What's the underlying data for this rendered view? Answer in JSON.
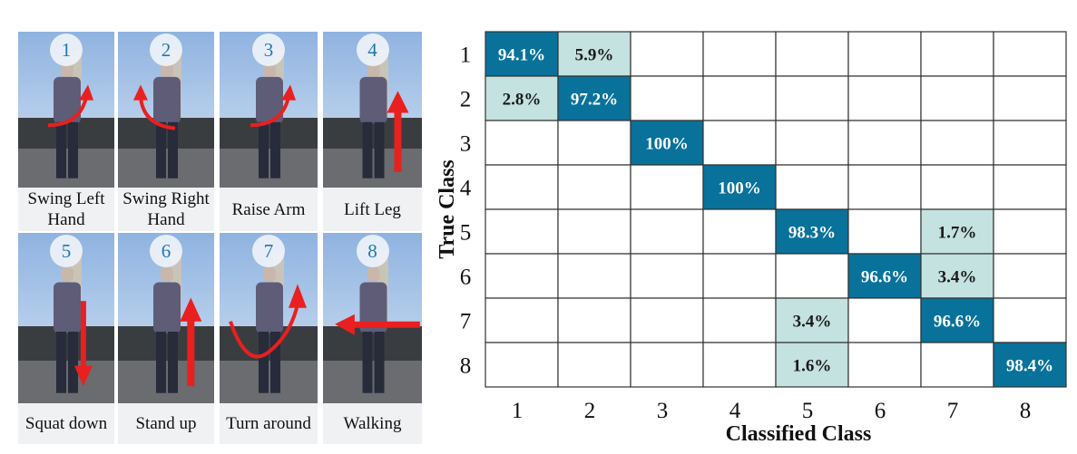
{
  "panels": [
    {
      "num": "1",
      "caption": "Swing Left Hand",
      "arrow": "curve-right"
    },
    {
      "num": "2",
      "caption": "Swing Right Hand",
      "arrow": "curve-left"
    },
    {
      "num": "3",
      "caption": "Raise Arm",
      "arrow": "curve-right"
    },
    {
      "num": "4",
      "caption": "Lift Leg",
      "arrow": "up"
    },
    {
      "num": "5",
      "caption": "Squat down",
      "arrow": "down"
    },
    {
      "num": "6",
      "caption": "Stand up",
      "arrow": "up"
    },
    {
      "num": "7",
      "caption": "Turn around",
      "arrow": "turn"
    },
    {
      "num": "8",
      "caption": "Walking",
      "arrow": "left"
    }
  ],
  "colors": {
    "high": "#08729b",
    "low": "#c4e2df",
    "arrow": "#e8201f"
  },
  "chart_data": {
    "type": "heatmap",
    "xlabel": "Classified Class",
    "ylabel": "True Class",
    "x_categories": [
      "1",
      "2",
      "3",
      "4",
      "5",
      "6",
      "7",
      "8"
    ],
    "y_categories": [
      "1",
      "2",
      "3",
      "4",
      "5",
      "6",
      "7",
      "8"
    ],
    "cells": [
      [
        "94.1%",
        "5.9%",
        "",
        "",
        "",
        "",
        "",
        ""
      ],
      [
        "2.8%",
        "97.2%",
        "",
        "",
        "",
        "",
        "",
        ""
      ],
      [
        "",
        "",
        "100%",
        "",
        "",
        "",
        "",
        ""
      ],
      [
        "",
        "",
        "",
        "100%",
        "",
        "",
        "",
        ""
      ],
      [
        "",
        "",
        "",
        "",
        "98.3%",
        "",
        "1.7%",
        ""
      ],
      [
        "",
        "",
        "",
        "",
        "",
        "96.6%",
        "3.4%",
        ""
      ],
      [
        "",
        "",
        "",
        "",
        "3.4%",
        "",
        "96.6%",
        ""
      ],
      [
        "",
        "",
        "",
        "",
        "1.6%",
        "",
        "",
        "98.4%"
      ]
    ]
  }
}
